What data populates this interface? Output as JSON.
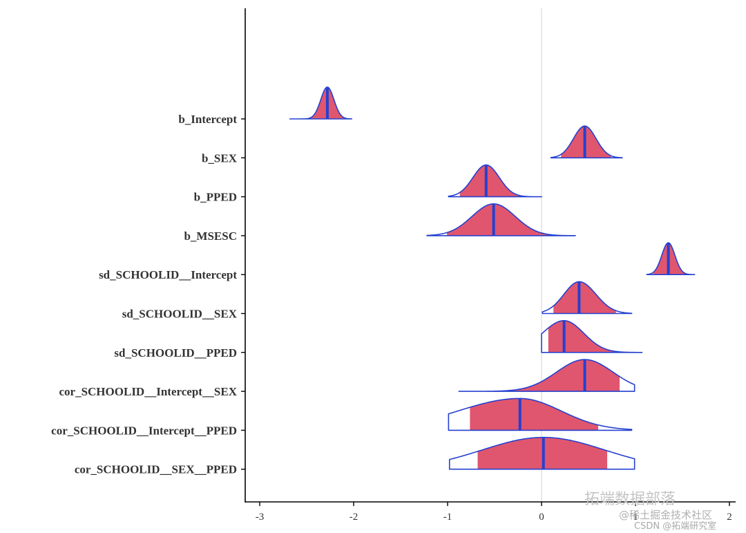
{
  "chart_data": {
    "type": "density-ridge",
    "title": "",
    "xlabel": "",
    "ylabel": "",
    "xlim": [
      -3.1,
      2.05
    ],
    "x_ticks": [
      -3,
      -2,
      -1,
      0,
      1,
      2
    ],
    "reference_line_x": 0,
    "grid": false,
    "parameters": [
      {
        "name": "b_Intercept",
        "median": -2.28,
        "lo": -2.68,
        "hi": -2.02,
        "sd": 0.07,
        "inner": 0.5,
        "skew": 0
      },
      {
        "name": "b_SEX",
        "median": 0.46,
        "lo": 0.1,
        "hi": 0.86,
        "sd": 0.12,
        "inner": 0.5,
        "skew": 0
      },
      {
        "name": "b_PPED",
        "median": -0.59,
        "lo": -0.99,
        "hi": 0.0,
        "sd": 0.14,
        "inner": 0.5,
        "skew": 0
      },
      {
        "name": "b_MSESC",
        "median": -0.51,
        "lo": -1.22,
        "hi": 0.36,
        "sd": 0.23,
        "inner": 0.5,
        "skew": 0
      },
      {
        "name": "sd_SCHOOLID__Intercept",
        "median": 1.35,
        "lo": 1.12,
        "hi": 1.63,
        "sd": 0.07,
        "inner": 0.5,
        "skew": 0
      },
      {
        "name": "sd_SCHOOLID__SEX",
        "median": 0.4,
        "lo": 0.01,
        "hi": 0.96,
        "sd": 0.17,
        "inner": 0.5,
        "skew": 0.05
      },
      {
        "name": "sd_SCHOOLID__PPED",
        "median": 0.24,
        "lo": 0.0,
        "hi": 1.07,
        "sd": 0.22,
        "inner": 0.5,
        "skew": -0.05
      },
      {
        "name": "cor_SCHOOLID__Intercept__SEX",
        "median": 0.46,
        "lo": -0.88,
        "hi": 0.99,
        "sd": 0.3,
        "inner": 0.5,
        "skew": 0
      },
      {
        "name": "cor_SCHOOLID__Intercept__PPED",
        "median": -0.23,
        "lo": -0.99,
        "hi": 0.96,
        "sd": 0.55,
        "inner": 0.5,
        "skew": -0.2
      },
      {
        "name": "cor_SCHOOLID__SEX__PPED",
        "median": 0.02,
        "lo": -0.98,
        "hi": 0.99,
        "sd": 0.65,
        "inner": 0.5,
        "skew": 0
      }
    ],
    "colors": {
      "fill": "#e0566e",
      "outline": "#2540d0",
      "median_line": "#2540d0",
      "axis": "#000000",
      "reference": "#d8d8d8",
      "label": "#333333"
    }
  },
  "watermark": {
    "line1": "拓端数据部落",
    "line2": "@稀土掘金技术社区",
    "line3": "CSDN @拓端研究室"
  }
}
